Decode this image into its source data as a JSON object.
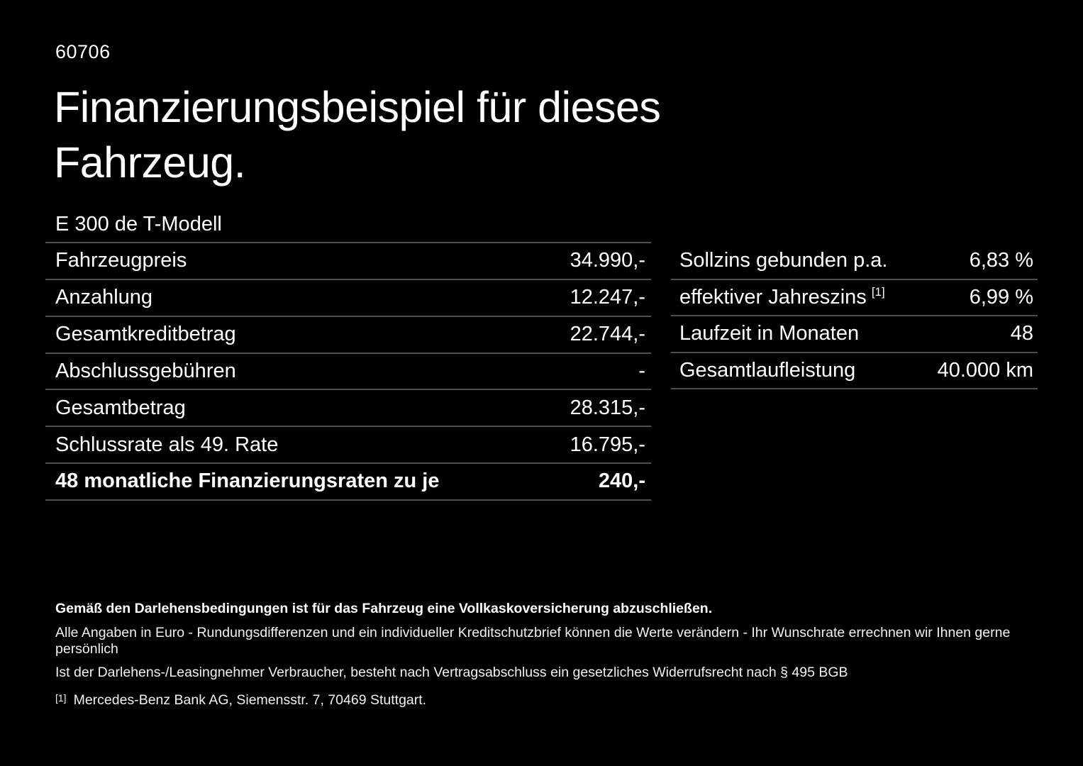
{
  "page": {
    "doc_number": "60706",
    "title_line1": "Finanzierungsbeispiel für dieses",
    "title_line2": "Fahrzeug.",
    "model": "E 300 de T-Modell"
  },
  "finance_table": {
    "rows": [
      {
        "label": "Fahrzeugpreis",
        "value": "34.990,-"
      },
      {
        "label": "Anzahlung",
        "value": "12.247,-"
      },
      {
        "label": "Gesamtkreditbetrag",
        "value": "22.744,-"
      },
      {
        "label": "Abschlussgebühren",
        "value": "-"
      },
      {
        "label": "Gesamtbetrag",
        "value": "28.315,-"
      },
      {
        "label": "Schlussrate als 49. Rate",
        "value": "16.795,-"
      },
      {
        "label": "48 monatliche Finanzierungsraten zu je",
        "value": "240,-"
      }
    ]
  },
  "conditions_table": {
    "rows": [
      {
        "label": "Sollzins gebunden p.a.",
        "sup": "",
        "value": "6,83 %"
      },
      {
        "label": "effektiver Jahreszins",
        "sup": "[1]",
        "value": "6,99 %"
      },
      {
        "label": "Laufzeit in Monaten",
        "sup": "",
        "value": "48"
      },
      {
        "label": "Gesamtlaufleistung",
        "sup": "",
        "value": "40.000 km"
      }
    ]
  },
  "footer": {
    "insurance_note": "Gemäß den Darlehensbedingungen ist für das Fahrzeug eine Vollkaskoversicherung abzuschließen.",
    "rounding_note": "Alle Angaben in Euro - Rundungsdifferenzen und ein individueller Kreditschutzbrief können die Werte verändern - Ihr Wunschrate errechnen wir Ihnen gerne persönlich",
    "withdrawal_note": "Ist der Darlehens-/Leasingnehmer Verbraucher, besteht nach Vertragsabschluss ein gesetzliches Widerrufsrecht nach § 495 BGB",
    "footnote_marker": "[1]",
    "footnote_text": "Mercedes-Benz Bank AG, Siemensstr. 7, 70469 Stuttgart."
  },
  "colors": {
    "background": "#000000",
    "text": "#ffffff",
    "divider": "#4e4e4e"
  }
}
